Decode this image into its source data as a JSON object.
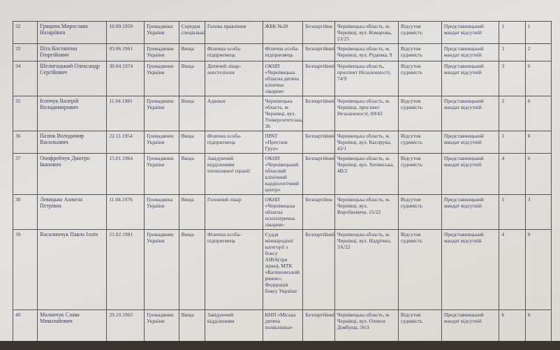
{
  "table": {
    "rows": [
      [
        "32",
        "Грицина Мирослава Назаріївна",
        "16.09.1959",
        "Громадянка України",
        "Середня спеціальна",
        "Голова правління",
        "ЖБК №28",
        "Безпартійна",
        "Чернівецька область, м. Чернівці, вул. Комарова, 23/25",
        "Відсутня судимість",
        "Представницький мандат відсутній",
        "1",
        "1"
      ],
      [
        "33",
        "Піта Костянтин Георгійович",
        "03.06.1961",
        "Громадянин України",
        "Вища",
        "Фізична особа-підприємець",
        "Фізична особа-підприємець",
        "Безпартійний",
        "Чернівецька область, м. Чернівці, вул. Руденка, 9",
        "Відсутня судимість",
        "Представницький мандат відсутній",
        "3",
        "2"
      ],
      [
        "34",
        "Шелигацький Олександр Сергійович",
        "30.04.1974",
        "Громадянин України",
        "Вища",
        "Дитячий лікар-анестезіолог",
        "ОКНП «Чернівецька обласна дитяча клінічна лікарня»",
        "Безпартійний",
        "Чернівецька область, проспект Незалежності, 74/9",
        "Відсутня судимість",
        "Представницький мандат відсутній",
        "3",
        "6"
      ],
      [
        "35",
        "Ісопчук Валерій Володимирович",
        "11.04.1981",
        "Громадянин України",
        "Вища",
        "Адвокат",
        "Чернівецька область, м. Чернівці, вул. Університетська, 36",
        "Безпартійний",
        "Чернівецька область, м. Чернівці, проспект Незалежності, 69/43",
        "Відсутня судимість",
        "Представницький мандат відсутній",
        "2",
        "6"
      ],
      [
        "36",
        "Пазюк Володимир Васильович",
        "22.11.1954",
        "Громадянин України",
        "Вища",
        "Фізична особа-підприємець",
        "ПРАТ «Престиж Груп»",
        "Безпартійний",
        "Чернівецька область, м. Чернівці, вул. Каспрука, 43/1",
        "Відсутня судимість",
        "Представницький мандат відсутній",
        "1",
        "8"
      ],
      [
        "37",
        "Онофрейчук Дмитро Іванович",
        "15.01.1964",
        "Громадянин України",
        "Вища",
        "Завідуючий відділенням інтенсивної терапії",
        "ОКНП «Чернівецький обласний клінічний кардіологічний центр»",
        "Безпартійний",
        "Чернівецька область, м. Чернівці, вул. Хотинська, 4В/2",
        "Відсутня судимість",
        "Представницький мандат відсутній",
        "4",
        "6"
      ],
      [
        "38",
        "Левицька Анжела Петрівна",
        "11.04.1976",
        "Громадянка України",
        "Вища",
        "Головний лікар",
        "ОКНП «Чернівецька обласна психіатрична лікарня»",
        "Безпартійна",
        "Чернівецька область, м. Чернівці, вул. Воробкевича, 15/22",
        "Відсутня судимість",
        "Представницький мандат відсутній",
        "5",
        "3"
      ],
      [
        "39",
        "Василинчук Павло Ілліч",
        "21.02.1981",
        "Громадянин України",
        "Вища",
        "Фізична особа-підприємець",
        "Суддя міжнародної категорії з боксу AIBA(три зірки), МТК «Калиновський ринок», Федерація боксу України",
        "Безпартійний",
        "Чернівецька область, м. Чернівці, вул. Надрічна, 3А/22",
        "Відсутня судимість",
        "Представницький мандат відсутній",
        "4",
        "8"
      ],
      [
        "40",
        "Маланчук Слава Миколайович",
        "29.10.1965",
        "Громадянин України",
        "Вища",
        "Завідуючий відділенням",
        "КНП «Міська дитяча поліклініка»",
        "Безпартійний",
        "Чернівецька область, м. Чернівці, вул. Олекси Довбуша, 56/3",
        "Відсутня судимість",
        "Представницький мандат відсутній",
        "6",
        "6"
      ]
    ]
  }
}
